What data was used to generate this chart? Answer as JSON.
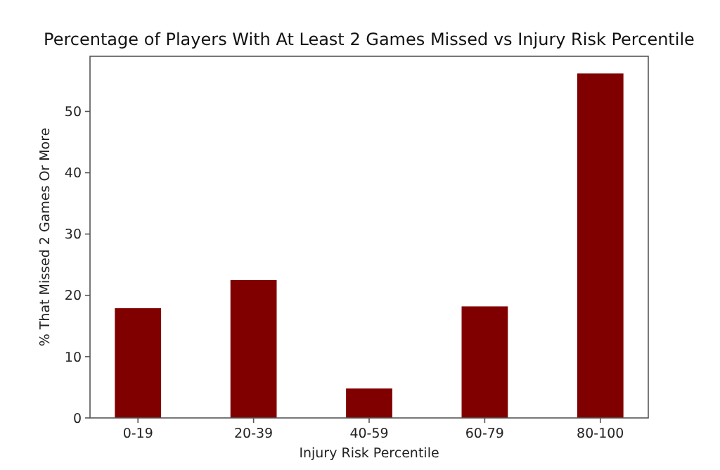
{
  "chart_data": {
    "type": "bar",
    "title": "Percentage of Players With At Least 2 Games Missed vs Injury Risk Percentile",
    "xlabel": "Injury Risk Percentile",
    "ylabel": "% That Missed 2 Games Or More",
    "categories": [
      "0-19",
      "20-39",
      "40-59",
      "60-79",
      "80-100"
    ],
    "values": [
      17.9,
      22.5,
      4.8,
      18.2,
      56.2
    ],
    "color": "#800000",
    "ylim": [
      0,
      59
    ],
    "yticks": [
      0,
      10,
      20,
      30,
      40,
      50
    ],
    "grid": false
  }
}
